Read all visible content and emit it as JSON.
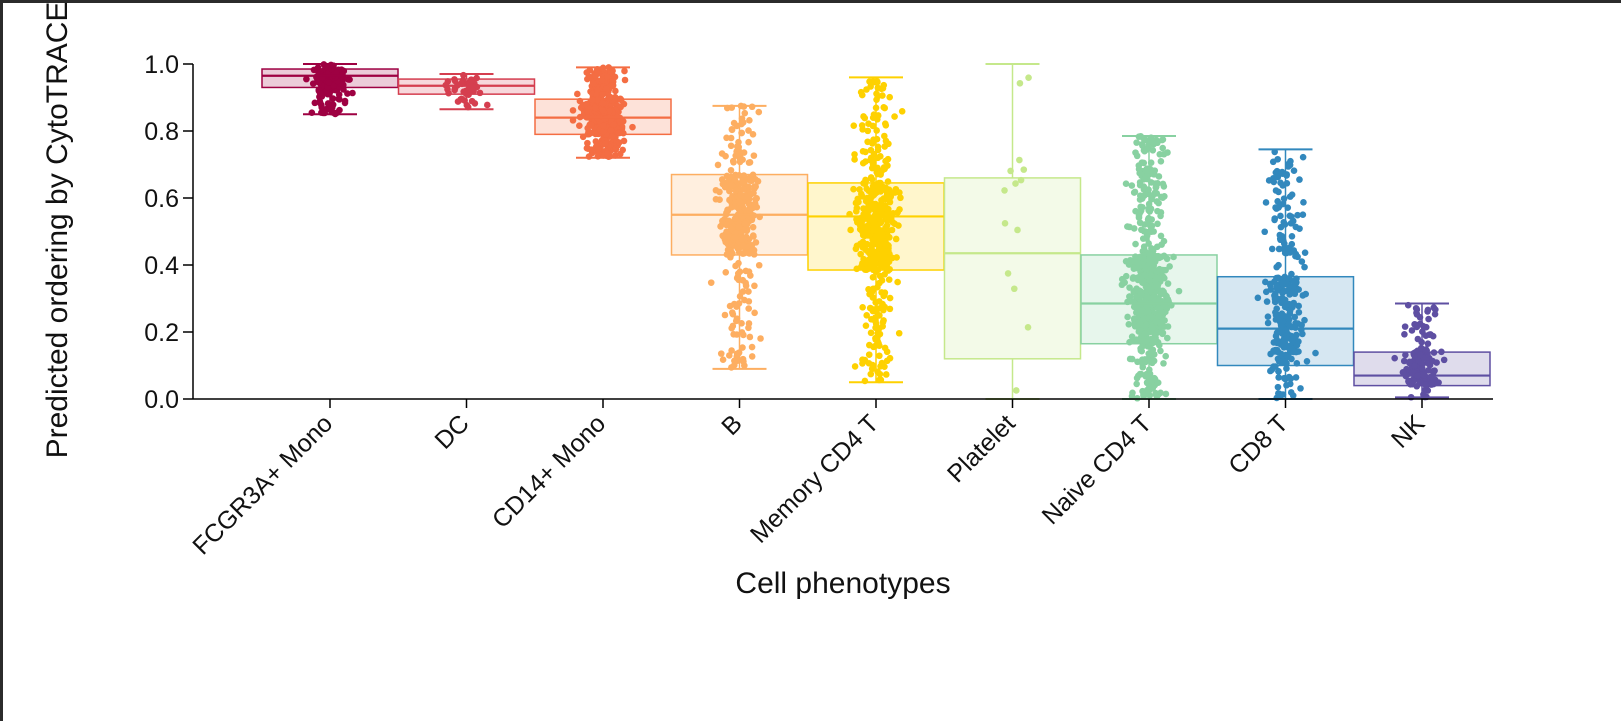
{
  "chart_data": {
    "type": "box",
    "xlabel": "Cell phenotypes",
    "ylabel": "Predicted ordering by CytoTRACE",
    "ylim": [
      0,
      1
    ],
    "yticks": [
      0.0,
      0.2,
      0.4,
      0.6,
      0.8,
      1.0
    ],
    "ytick_labels": [
      "0.0",
      "0.2",
      "0.4",
      "0.6",
      "0.8",
      "1.0"
    ],
    "grid": false,
    "legend": "none",
    "overlay": "jittered points",
    "categories": [
      "FCGR3A+ Mono",
      "DC",
      "CD14+ Mono",
      "B",
      "Memory CD4 T",
      "Platelet",
      "Naive CD4 T",
      "CD8 T",
      "NK"
    ],
    "boxes": [
      {
        "category": "FCGR3A+ Mono",
        "whisker_low": 0.85,
        "q1": 0.93,
        "median": 0.965,
        "q3": 0.985,
        "whisker_high": 1.0,
        "color": "#9e0142",
        "points": 160
      },
      {
        "category": "DC",
        "whisker_low": 0.865,
        "q1": 0.91,
        "median": 0.935,
        "q3": 0.955,
        "whisker_high": 0.97,
        "color": "#d53e4f",
        "points": 40
      },
      {
        "category": "CD14+ Mono",
        "whisker_low": 0.72,
        "q1": 0.79,
        "median": 0.84,
        "q3": 0.895,
        "whisker_high": 0.99,
        "color": "#f46d43",
        "points": 500
      },
      {
        "category": "B",
        "whisker_low": 0.09,
        "q1": 0.43,
        "median": 0.55,
        "q3": 0.67,
        "whisker_high": 0.875,
        "color": "#fdae61",
        "points": 350
      },
      {
        "category": "Memory CD4 T",
        "whisker_low": 0.05,
        "q1": 0.385,
        "median": 0.545,
        "q3": 0.645,
        "whisker_high": 0.96,
        "color": "#fed100",
        "points": 480
      },
      {
        "category": "Platelet",
        "whisker_low": 0.0,
        "q1": 0.12,
        "median": 0.435,
        "q3": 0.66,
        "whisker_high": 1.0,
        "color": "#c5e88b",
        "points": 14
      },
      {
        "category": "Naive CD4 T",
        "whisker_low": 0.0,
        "q1": 0.165,
        "median": 0.285,
        "q3": 0.43,
        "whisker_high": 0.785,
        "color": "#88d1a1",
        "points": 650
      },
      {
        "category": "CD8 T",
        "whisker_low": 0.0,
        "q1": 0.1,
        "median": 0.21,
        "q3": 0.365,
        "whisker_high": 0.745,
        "color": "#3288bd",
        "points": 280
      },
      {
        "category": "NK",
        "whisker_low": 0.005,
        "q1": 0.04,
        "median": 0.07,
        "q3": 0.14,
        "whisker_high": 0.285,
        "color": "#5e4fa2",
        "points": 150
      }
    ]
  }
}
